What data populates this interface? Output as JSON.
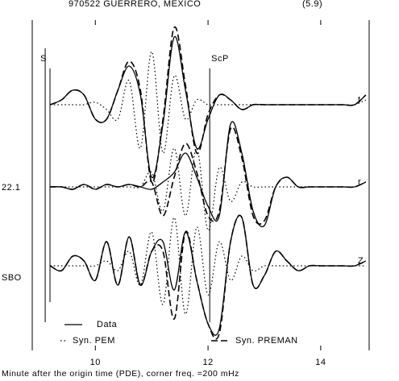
{
  "chart_data": {
    "type": "line",
    "title": "970522 GUERRERO, MEXICO",
    "subtitle": "(5.9)",
    "x_label": "Minute after the origin time (PDE), corner freq. =200 mHz",
    "xlim": [
      8.88,
      14.86
    ],
    "xticks": [
      10,
      12,
      14
    ],
    "phases": [
      {
        "label": "S",
        "x": 9.11
      },
      {
        "label": "ScP",
        "x": 12.03
      }
    ],
    "legend": [
      {
        "name": "Data",
        "style": "solid"
      },
      {
        "name": "Syn. PEM",
        "style": "dotted"
      },
      {
        "name": "Syn. PREMAN",
        "style": "dashed"
      }
    ],
    "x": [
      9.2,
      9.4,
      9.6,
      9.8,
      10.0,
      10.2,
      10.4,
      10.6,
      10.8,
      11.0,
      11.2,
      11.4,
      11.6,
      11.8,
      12.0,
      12.2,
      12.4,
      12.6,
      12.8,
      13.0,
      13.2,
      13.4,
      13.6,
      13.8,
      14.0,
      14.2,
      14.4,
      14.6,
      14.8
    ],
    "traces": [
      {
        "label_right": "t",
        "ylim": [
          -1.8,
          1.8
        ],
        "color": "#000000",
        "series": [
          {
            "style": "solid",
            "values": [
              0,
              0.1,
              0.3,
              0.2,
              -0.3,
              -0.3,
              0.3,
              0.8,
              0.2,
              -1.5,
              -0.4,
              1.4,
              0.3,
              -0.9,
              -0.3,
              0.2,
              0.1,
              -0.1,
              0,
              0,
              0,
              0,
              0,
              0,
              0,
              0,
              0,
              0,
              0.2
            ]
          },
          {
            "style": "dotted",
            "values": [
              0,
              0,
              0,
              0,
              0.05,
              -0.1,
              -0.3,
              0.5,
              -0.9,
              1.1,
              -1.0,
              0.6,
              -0.3,
              0.1,
              0,
              0,
              0,
              0,
              0,
              0,
              0,
              0,
              0,
              0,
              0,
              0,
              0,
              0,
              0.1
            ]
          },
          {
            "style": "dashed",
            "values": [
              0,
              0.1,
              0.3,
              0.2,
              -0.3,
              -0.3,
              0.3,
              0.9,
              0.3,
              -1.6,
              -0.3,
              1.6,
              0.4,
              -1.0,
              -0.2,
              0.2,
              0.1,
              -0.1,
              0,
              0,
              0,
              0,
              0,
              0,
              0,
              0,
              0,
              0,
              0.2
            ]
          }
        ]
      },
      {
        "label_left": "22.1",
        "label_right": "r",
        "ylim": [
          -1.8,
          1.8
        ],
        "color": "#000000",
        "series": [
          {
            "style": "solid",
            "values": [
              0,
              0,
              -0.05,
              0.05,
              -0.05,
              0.05,
              0,
              0.05,
              0,
              -0.05,
              0.1,
              0.3,
              0.7,
              0.2,
              -0.4,
              -0.6,
              1.3,
              0.7,
              -0.5,
              -0.8,
              0,
              0.2,
              0,
              0,
              0,
              0,
              0,
              0,
              0.1
            ]
          },
          {
            "style": "dotted",
            "values": [
              0,
              0,
              0,
              0,
              0,
              0,
              0,
              0,
              0,
              0.3,
              -0.5,
              0.8,
              -0.6,
              0.8,
              -0.9,
              0.4,
              -0.3,
              0.1,
              0,
              0,
              0,
              0,
              0,
              0,
              0,
              0,
              0,
              0,
              0.1
            ]
          },
          {
            "style": "dashed",
            "values": [
              0,
              0,
              -0.05,
              0.05,
              -0.05,
              0.05,
              0,
              0.05,
              0,
              0.1,
              -0.6,
              0.2,
              0.9,
              0.3,
              -0.6,
              -0.5,
              1.2,
              0.6,
              -0.6,
              -0.7,
              0,
              0.2,
              0,
              0,
              0,
              0,
              0,
              0,
              0.1
            ]
          }
        ]
      },
      {
        "label_left": "SBO",
        "label_right": "Z",
        "ylim": [
          -1.8,
          1.8
        ],
        "color": "#000000",
        "series": [
          {
            "style": "solid",
            "values": [
              0,
              -0.1,
              0.2,
              0.1,
              -0.3,
              0.5,
              -0.4,
              0.6,
              -0.4,
              0.3,
              0.5,
              -0.5,
              0.7,
              -0.3,
              -1.2,
              -1.3,
              0.5,
              1.0,
              -0.4,
              -0.2,
              0.3,
              0.1,
              -0.1,
              0,
              0,
              0,
              0,
              0,
              0.1
            ]
          },
          {
            "style": "dotted",
            "values": [
              0,
              0,
              0,
              0,
              0,
              0.1,
              -0.1,
              0.3,
              -0.4,
              0.7,
              -0.8,
              1.0,
              -1.0,
              0.8,
              -0.6,
              0.5,
              -0.3,
              0.2,
              -0.1,
              0,
              0,
              0,
              0,
              0,
              0,
              0,
              0,
              0,
              0
            ]
          },
          {
            "style": "dashed",
            "values": [
              0,
              -0.1,
              0.2,
              0.1,
              -0.3,
              0.5,
              -0.4,
              0.6,
              -0.4,
              0.3,
              0.3,
              -1.1,
              0.7,
              -0.3,
              -1.2,
              -1.4,
              0.5,
              1.0,
              -0.4,
              -0.2,
              0.3,
              0.1,
              -0.1,
              0,
              0,
              0,
              0,
              0,
              0.1
            ]
          }
        ]
      }
    ]
  }
}
